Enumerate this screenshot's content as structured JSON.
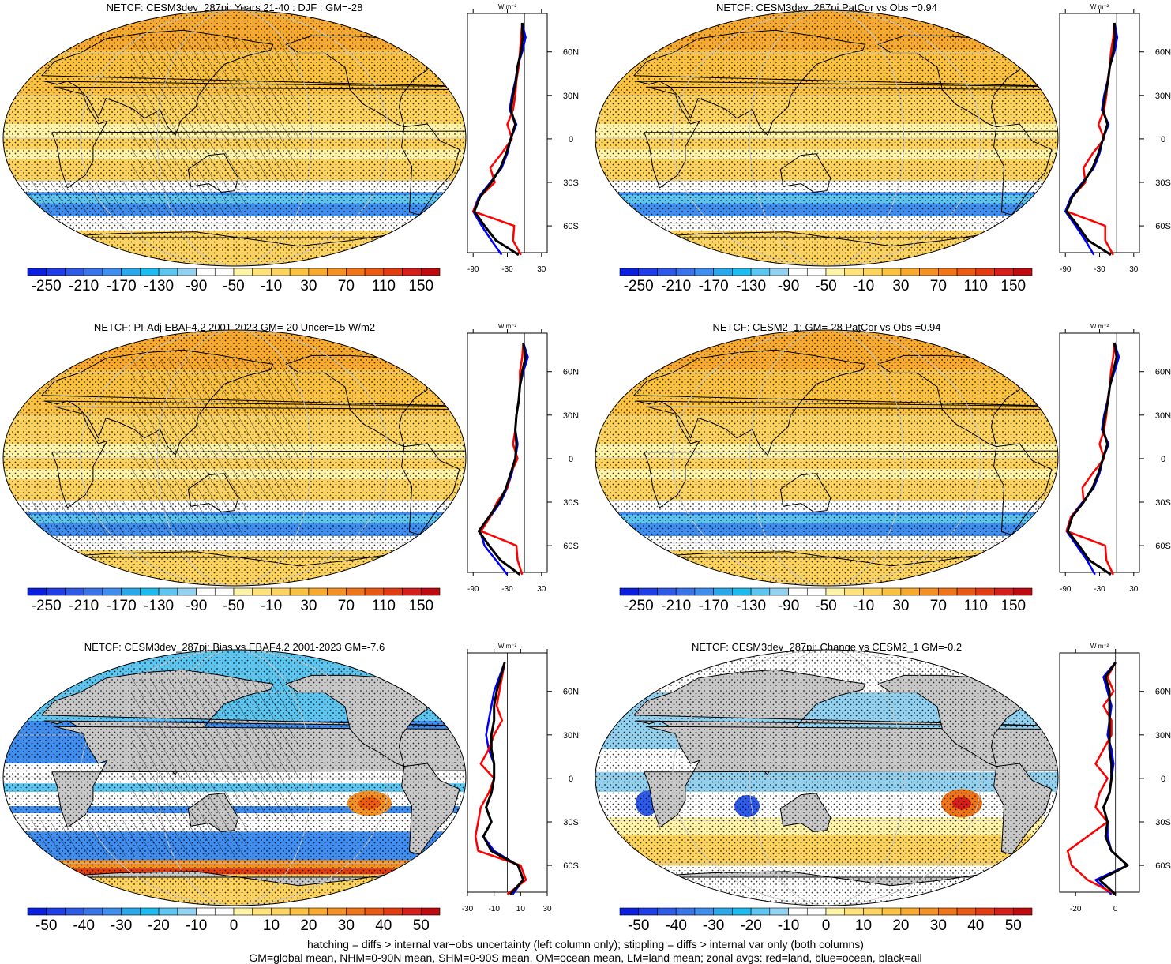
{
  "palette": {
    "main": [
      "#0a1fe0",
      "#1f3de8",
      "#2d5ae8",
      "#3a74ea",
      "#3f8ef0",
      "#2aa8ec",
      "#1cbcf0",
      "#5cc6f0",
      "#92d2f0",
      "#ffffff",
      "#ffffff",
      "#fff3a8",
      "#ffe27a",
      "#fcd35e",
      "#fbc242",
      "#f8aa2e",
      "#f59022",
      "#f07418",
      "#ea5a12",
      "#e33c12",
      "#d61e1a",
      "#c00a10"
    ],
    "land": "#c8c8c8",
    "zonal_land": "#ff0000",
    "zonal_ocean": "#0000ff",
    "zonal_all": "#000000"
  },
  "footer": {
    "line1": "hatching = diffs > internal var+obs uncertainty (left column only); stippling = diffs > internal var only (both columns)",
    "line2": "GM=global mean, NHM=0-90N mean, SHM=0-90S mean, OM=ocean mean, LM=land mean; zonal avgs: red=land, blue=ocean, black=all"
  },
  "chart_data": [
    {
      "type": "heatmap",
      "title": "NETCF: CESM3dev_287pi: Years 21-40 : DJF : GM=-28",
      "colorbar_ticks": [
        "-250",
        "-210",
        "-170",
        "-130",
        "-90",
        "-50",
        "-10",
        "30",
        "70",
        "110",
        "150"
      ],
      "zonal": {
        "unit_label": "W m⁻²",
        "x_ticks": [
          "-90",
          "-30",
          "30"
        ],
        "xlim": [
          -100,
          40
        ],
        "lat_ticks": [
          "60N",
          "30N",
          "0",
          "30S",
          "60S"
        ],
        "lat": [
          80,
          70,
          60,
          50,
          40,
          30,
          20,
          10,
          0,
          -10,
          -20,
          -30,
          -40,
          -50,
          -60,
          -70,
          -80
        ],
        "land": [
          -4,
          -6,
          -8,
          -10,
          -14,
          -16,
          -20,
          -30,
          -22,
          -40,
          -60,
          -52,
          -78,
          -90,
          -18,
          -20,
          -6
        ],
        "ocean": [
          -4,
          2,
          -4,
          -12,
          -16,
          -22,
          -26,
          -14,
          -24,
          -30,
          -40,
          -60,
          -80,
          -90,
          -75,
          -58,
          -40
        ],
        "all": [
          -4,
          -3,
          -6,
          -12,
          -15,
          -20,
          -24,
          -16,
          -24,
          -32,
          -42,
          -58,
          -78,
          -88,
          -70,
          -50,
          -10
        ]
      }
    },
    {
      "type": "heatmap",
      "title": "NETCF: CESM3dev_287pi PatCor vs Obs =0.94",
      "colorbar_ticks": [
        "-250",
        "-210",
        "-170",
        "-130",
        "-90",
        "-50",
        "-10",
        "30",
        "70",
        "110",
        "150"
      ],
      "zonal": {
        "unit_label": "W m⁻²",
        "x_ticks": [
          "-90",
          "-30",
          "30"
        ],
        "xlim": [
          -100,
          40
        ],
        "lat_ticks": [
          "60N",
          "30N",
          "0",
          "30S",
          "60S"
        ],
        "lat": [
          80,
          70,
          60,
          50,
          40,
          30,
          20,
          10,
          0,
          -10,
          -20,
          -30,
          -40,
          -50,
          -60,
          -70,
          -80
        ],
        "land": [
          -4,
          -6,
          -10,
          -12,
          -16,
          -18,
          -22,
          -32,
          -22,
          -42,
          -58,
          -55,
          -78,
          -88,
          -20,
          -20,
          -6
        ],
        "ocean": [
          -4,
          1,
          -4,
          -12,
          -16,
          -22,
          -26,
          -14,
          -24,
          -30,
          -40,
          -60,
          -80,
          -90,
          -72,
          -55,
          -40
        ],
        "all": [
          -4,
          -3,
          -6,
          -12,
          -15,
          -20,
          -24,
          -16,
          -24,
          -32,
          -42,
          -58,
          -78,
          -88,
          -68,
          -50,
          -10
        ]
      }
    },
    {
      "type": "heatmap",
      "title": "NETCF: PI-Adj EBAF4.2 2001-2023 GM=-20 Uncer=15 W/m2",
      "colorbar_ticks": [
        "-250",
        "-210",
        "-170",
        "-130",
        "-90",
        "-50",
        "-10",
        "30",
        "70",
        "110",
        "150"
      ],
      "zonal": {
        "unit_label": "W m⁻²",
        "x_ticks": [
          "-90",
          "-30",
          "30"
        ],
        "xlim": [
          -100,
          40
        ],
        "lat_ticks": [
          "60N",
          "30N",
          "0",
          "30S",
          "60S"
        ],
        "lat": [
          80,
          70,
          60,
          50,
          40,
          30,
          20,
          10,
          0,
          -10,
          -20,
          -30,
          -40,
          -50,
          -60,
          -70,
          -80
        ],
        "land": [
          -2,
          -4,
          -8,
          -8,
          -10,
          -14,
          -16,
          -20,
          -12,
          -24,
          -30,
          -48,
          -60,
          -76,
          -14,
          -12,
          -4
        ],
        "ocean": [
          -2,
          6,
          -2,
          -8,
          -10,
          -14,
          -16,
          -12,
          -16,
          -22,
          -30,
          -42,
          -60,
          -78,
          -70,
          -50,
          -30
        ],
        "all": [
          -2,
          2,
          -4,
          -8,
          -10,
          -14,
          -16,
          -14,
          -16,
          -24,
          -32,
          -44,
          -62,
          -80,
          -62,
          -42,
          -8
        ]
      }
    },
    {
      "type": "heatmap",
      "title": "NETCF: CESM2_1: GM=-28 PatCor vs Obs =0.94",
      "colorbar_ticks": [
        "-250",
        "-210",
        "-170",
        "-130",
        "-90",
        "-50",
        "-10",
        "30",
        "70",
        "110",
        "150"
      ],
      "zonal": {
        "unit_label": "W m⁻²",
        "x_ticks": [
          "-90",
          "-30",
          "30"
        ],
        "xlim": [
          -100,
          40
        ],
        "lat_ticks": [
          "60N",
          "30N",
          "0",
          "30S",
          "60S"
        ],
        "lat": [
          80,
          70,
          60,
          50,
          40,
          30,
          20,
          10,
          0,
          -10,
          -20,
          -30,
          -40,
          -50,
          -60,
          -70,
          -80
        ],
        "land": [
          -4,
          -6,
          -10,
          -12,
          -16,
          -18,
          -22,
          -30,
          -22,
          -42,
          -60,
          -58,
          -80,
          -88,
          -20,
          -18,
          -6
        ],
        "ocean": [
          -4,
          4,
          -4,
          -12,
          -16,
          -22,
          -26,
          -14,
          -24,
          -30,
          -40,
          -60,
          -80,
          -88,
          -70,
          -52,
          -38
        ],
        "all": [
          -4,
          0,
          -6,
          -12,
          -15,
          -20,
          -24,
          -16,
          -24,
          -32,
          -42,
          -58,
          -78,
          -86,
          -66,
          -48,
          -10
        ]
      }
    },
    {
      "type": "heatmap",
      "title": "NETCF: CESM3dev_287pi: Bias vs EBAF4.2 2001-2023 GM=-7.6",
      "colorbar_ticks": [
        "-50",
        "-40",
        "-30",
        "-20",
        "-10",
        "0",
        "10",
        "20",
        "30",
        "40",
        "50"
      ],
      "zonal": {
        "unit_label": "W m⁻²",
        "x_ticks": [
          "-30",
          "-10",
          "10",
          "30"
        ],
        "xlim": [
          -30,
          30
        ],
        "lat_ticks": [
          "60N",
          "30N",
          "0",
          "30S",
          "60S"
        ],
        "lat": [
          80,
          70,
          60,
          50,
          40,
          30,
          20,
          10,
          0,
          -10,
          -20,
          -30,
          -40,
          -50,
          -60,
          -70,
          -80
        ],
        "land": [
          -2,
          -4,
          -6,
          -8,
          -4,
          -10,
          -14,
          -20,
          -10,
          -14,
          -20,
          -22,
          -24,
          -22,
          10,
          14,
          0
        ],
        "ocean": [
          -2,
          -6,
          -10,
          -12,
          -14,
          -16,
          -14,
          -10,
          -10,
          -12,
          -16,
          -12,
          -18,
          -10,
          8,
          12,
          4
        ],
        "all": [
          -2,
          -5,
          -8,
          -10,
          -10,
          -12,
          -12,
          -10,
          -10,
          -12,
          -16,
          -12,
          -18,
          -12,
          8,
          12,
          2
        ]
      }
    },
    {
      "type": "heatmap",
      "title": "NETCF: CESM3dev_287pi: Change vs CESM2_1 GM=-0.2",
      "colorbar_ticks": [
        "-50",
        "-40",
        "-30",
        "-20",
        "-10",
        "0",
        "10",
        "20",
        "30",
        "40",
        "50"
      ],
      "zonal": {
        "unit_label": "W m⁻²",
        "x_ticks": [
          "-20",
          "0"
        ],
        "xlim": [
          -28,
          12
        ],
        "lat_ticks": [
          "60N",
          "30N",
          "0",
          "30S",
          "60S"
        ],
        "lat": [
          80,
          70,
          60,
          50,
          40,
          30,
          20,
          10,
          0,
          -10,
          -20,
          -30,
          -40,
          -50,
          -60,
          -70,
          -80
        ],
        "land": [
          0,
          -4,
          -1,
          -6,
          -2,
          -2,
          -6,
          -10,
          -4,
          -8,
          -10,
          -4,
          -14,
          -24,
          -22,
          -14,
          0
        ],
        "ocean": [
          0,
          -6,
          -4,
          -2,
          -3,
          -4,
          -2,
          -1,
          -2,
          -3,
          -6,
          -4,
          -4,
          -2,
          6,
          -10,
          -2
        ],
        "all": [
          0,
          -5,
          -3,
          -3,
          -3,
          -3,
          -3,
          -2,
          -2,
          -3,
          -6,
          -4,
          -5,
          -2,
          6,
          -8,
          0
        ]
      }
    }
  ]
}
